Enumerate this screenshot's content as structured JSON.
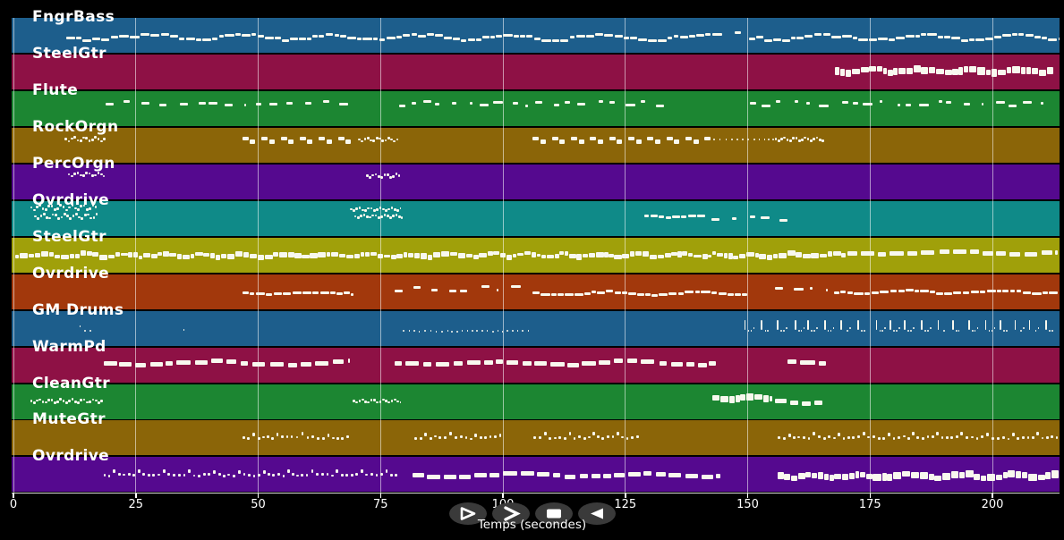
{
  "app": {
    "background": "#000000"
  },
  "chart_data": {
    "type": "timeline",
    "description": "Multi-track MIDI piano-roll timeline, 13 instrument lanes with white note events over colored bands",
    "xlabel": "Temps (secondes)",
    "x_ticks": [
      0,
      25,
      50,
      75,
      100,
      125,
      150,
      175,
      200
    ],
    "x_range": [
      0,
      213.7
    ],
    "grid": true,
    "note_color": "#f8f8ee",
    "label_color": "#ffffff",
    "tracks": [
      {
        "name": "FngrBass",
        "color": "#1d5e8c",
        "runs": [
          {
            "type": "line",
            "t0": 10.8,
            "t1": 142.5,
            "y": 0.56,
            "amp": 0.1
          },
          {
            "type": "sparse",
            "t0": 142.8,
            "t1": 150.0,
            "y": 0.52,
            "amp": 0.1
          },
          {
            "type": "line",
            "t0": 150.3,
            "t1": 213.5,
            "y": 0.56,
            "amp": 0.1
          }
        ]
      },
      {
        "name": "SteelGtr",
        "color": "#8e1145",
        "runs": [
          {
            "type": "cluster",
            "t0": 167.8,
            "t1": 212.4,
            "y": 0.47,
            "amp": 0.07
          }
        ]
      },
      {
        "name": "Flute",
        "color": "#1c8632",
        "runs": [
          {
            "type": "sparse",
            "t0": 18.8,
            "t1": 69.0,
            "y": 0.36,
            "amp": 0.07
          },
          {
            "type": "sparse",
            "t0": 78.8,
            "t1": 133.5,
            "y": 0.36,
            "amp": 0.07
          },
          {
            "type": "sparse",
            "t0": 150.4,
            "t1": 210.4,
            "y": 0.36,
            "amp": 0.07
          }
        ]
      },
      {
        "name": "RockOrgn",
        "color": "#8b6508",
        "runs": [
          {
            "type": "squiggle",
            "t0": 10.5,
            "t1": 18.9,
            "y": 0.33,
            "amp": 0.06
          },
          {
            "type": "pairs",
            "t0": 46.8,
            "t1": 70.2,
            "y": 0.31,
            "amp": 0.03
          },
          {
            "type": "squiggle",
            "t0": 70.4,
            "t1": 78.6,
            "y": 0.34,
            "amp": 0.05
          },
          {
            "type": "pairs",
            "t0": 106.1,
            "t1": 141.6,
            "y": 0.31,
            "amp": 0.03
          },
          {
            "type": "dots",
            "t0": 141.9,
            "t1": 155.2,
            "y": 0.33,
            "amp": 0.02
          },
          {
            "type": "squiggle",
            "t0": 155.5,
            "t1": 165.6,
            "y": 0.33,
            "amp": 0.05
          }
        ]
      },
      {
        "name": "PercOrgn",
        "color": "#55098f",
        "runs": [
          {
            "type": "squiggle",
            "t0": 11.1,
            "t1": 18.7,
            "y": 0.29,
            "amp": 0.05
          },
          {
            "type": "squiggle",
            "t0": 72.0,
            "t1": 78.7,
            "y": 0.33,
            "amp": 0.05
          }
        ]
      },
      {
        "name": "Ovrdrive",
        "color": "#0f8a88",
        "runs": [
          {
            "type": "squiggle",
            "t0": 3.4,
            "t1": 17.0,
            "y": 0.19,
            "amp": 0.07
          },
          {
            "type": "squiggle",
            "t0": 4.2,
            "t1": 17.2,
            "y": 0.44,
            "amp": 0.07
          },
          {
            "type": "squiggle",
            "t0": 68.7,
            "t1": 79.2,
            "y": 0.24,
            "amp": 0.04
          },
          {
            "type": "squiggle",
            "t0": 69.6,
            "t1": 79.2,
            "y": 0.44,
            "amp": 0.04
          },
          {
            "type": "line",
            "t0": 128.8,
            "t1": 141.4,
            "y": 0.43,
            "amp": 0.06
          },
          {
            "type": "sparse",
            "t0": 142.6,
            "t1": 158.2,
            "y": 0.5,
            "amp": 0.09
          }
        ]
      },
      {
        "name": "SteelGtr",
        "color": "#a0a00a",
        "runs": [
          {
            "type": "dense",
            "t0": 0.4,
            "t1": 170.0,
            "y": 0.51,
            "amp": 0.08
          },
          {
            "type": "blocks",
            "t0": 170.4,
            "t1": 213.4,
            "y": 0.44,
            "amp": 0.04
          }
        ]
      },
      {
        "name": "Ovrdrive",
        "color": "#a2380c",
        "runs": [
          {
            "type": "line",
            "t0": 46.8,
            "t1": 69.5,
            "y": 0.55,
            "amp": 0.05
          },
          {
            "type": "sparse",
            "t0": 77.9,
            "t1": 105.0,
            "y": 0.41,
            "amp": 0.08
          },
          {
            "type": "line",
            "t0": 106.1,
            "t1": 149.9,
            "y": 0.55,
            "amp": 0.06
          },
          {
            "type": "sparse",
            "t0": 155.5,
            "t1": 166.4,
            "y": 0.41,
            "amp": 0.07
          },
          {
            "type": "line",
            "t0": 167.6,
            "t1": 213.4,
            "y": 0.51,
            "amp": 0.06
          }
        ]
      },
      {
        "name": "GM Drums",
        "color": "#1d5e8c",
        "runs": [
          {
            "type": "dots",
            "t0": 13.5,
            "t1": 16.0,
            "y": 0.52,
            "amp": 0.07
          },
          {
            "type": "dots",
            "t0": 34.7,
            "t1": 35.3,
            "y": 0.55,
            "amp": 0.01
          },
          {
            "type": "dots",
            "t0": 79.6,
            "t1": 105.2,
            "y": 0.58,
            "amp": 0.02
          },
          {
            "type": "drums",
            "t0": 149.3,
            "t1": 213.2,
            "y": 0.52,
            "amp": 0.1
          }
        ]
      },
      {
        "name": "WarmPd",
        "color": "#8e1145",
        "runs": [
          {
            "type": "blocks",
            "t0": 18.4,
            "t1": 68.6,
            "y": 0.45,
            "amp": 0.06
          },
          {
            "type": "blocks",
            "t0": 77.9,
            "t1": 143.6,
            "y": 0.45,
            "amp": 0.06
          },
          {
            "type": "blocks",
            "t0": 158.1,
            "t1": 166.0,
            "y": 0.42,
            "amp": 0.03
          }
        ]
      },
      {
        "name": "CleanGtr",
        "color": "#1c8632",
        "runs": [
          {
            "type": "squiggle",
            "t0": 3.4,
            "t1": 18.3,
            "y": 0.49,
            "amp": 0.05
          },
          {
            "type": "squiggle",
            "t0": 69.3,
            "t1": 79.2,
            "y": 0.49,
            "amp": 0.04
          },
          {
            "type": "cluster",
            "t0": 142.8,
            "t1": 155.0,
            "y": 0.41,
            "amp": 0.05
          },
          {
            "type": "blocks",
            "t0": 155.6,
            "t1": 165.2,
            "y": 0.5,
            "amp": 0.07
          }
        ]
      },
      {
        "name": "MuteGtr",
        "color": "#8b6508",
        "runs": [
          {
            "type": "ticks",
            "t0": 46.8,
            "t1": 68.6,
            "y": 0.49,
            "amp": 0.06
          },
          {
            "type": "ticks",
            "t0": 81.9,
            "t1": 99.7,
            "y": 0.49,
            "amp": 0.06
          },
          {
            "type": "ticks",
            "t0": 106.3,
            "t1": 128.0,
            "y": 0.49,
            "amp": 0.06
          },
          {
            "type": "ticks",
            "t0": 156.2,
            "t1": 213.4,
            "y": 0.49,
            "amp": 0.06
          }
        ]
      },
      {
        "name": "Ovrdrive",
        "color": "#55098f",
        "runs": [
          {
            "type": "ticks",
            "t0": 18.4,
            "t1": 78.6,
            "y": 0.51,
            "amp": 0.05
          },
          {
            "type": "blocks",
            "t0": 81.5,
            "t1": 144.5,
            "y": 0.52,
            "amp": 0.05
          },
          {
            "type": "cluster",
            "t0": 156.2,
            "t1": 213.5,
            "y": 0.54,
            "amp": 0.07
          }
        ]
      }
    ]
  },
  "controls": {
    "background": "#3a3a3a",
    "icon_color": "#ffffff",
    "buttons": [
      {
        "id": "play",
        "shape": "triangle-right-outline"
      },
      {
        "id": "forward",
        "shape": "chevron-right"
      },
      {
        "id": "stop",
        "shape": "square"
      },
      {
        "id": "rewind",
        "shape": "triangle-left-filled"
      }
    ]
  }
}
